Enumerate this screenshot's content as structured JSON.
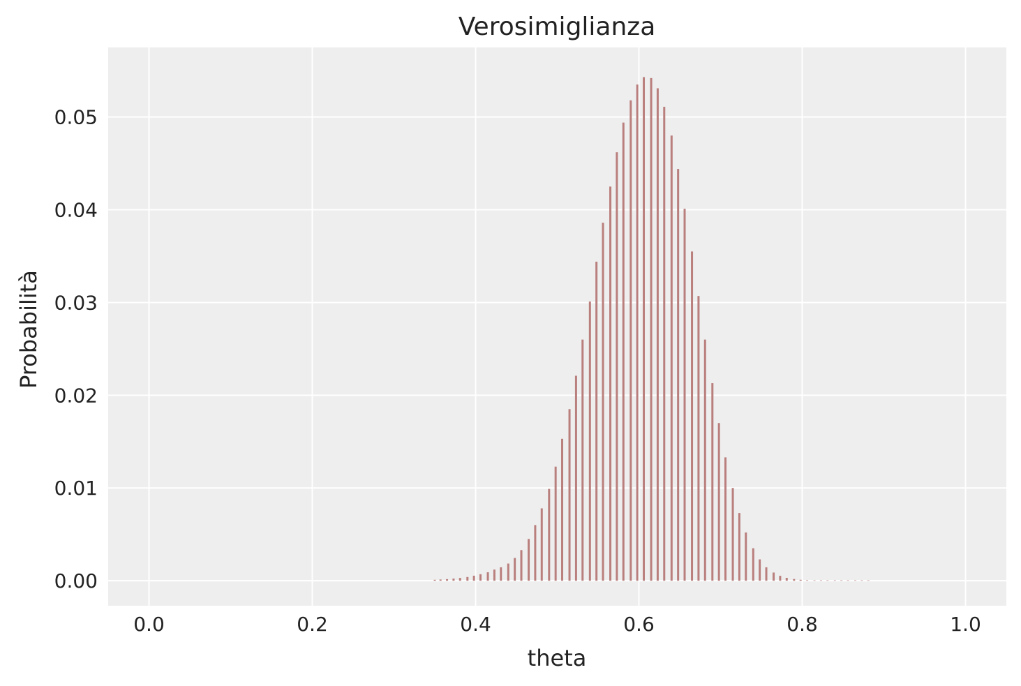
{
  "chart_data": {
    "type": "bar",
    "title": "Verosimiglianza",
    "xlabel": "theta",
    "ylabel": "Probabilità",
    "xlim": [
      -0.05,
      1.05
    ],
    "ylim": [
      -0.0027,
      0.0575
    ],
    "xticks": [
      "0.0",
      "0.2",
      "0.4",
      "0.6",
      "0.8",
      "1.0"
    ],
    "yticks": [
      "0.00",
      "0.01",
      "0.02",
      "0.03",
      "0.04",
      "0.05"
    ],
    "grid": true,
    "background": "#eeeeee",
    "grid_color": "#ffffff",
    "bar_color": "#b97f7d",
    "x": [
      0.35,
      0.357,
      0.365,
      0.373,
      0.381,
      0.39,
      0.398,
      0.406,
      0.415,
      0.423,
      0.431,
      0.44,
      0.448,
      0.456,
      0.465,
      0.473,
      0.481,
      0.49,
      0.498,
      0.506,
      0.515,
      0.523,
      0.531,
      0.54,
      0.548,
      0.556,
      0.565,
      0.573,
      0.581,
      0.59,
      0.598,
      0.606,
      0.615,
      0.623,
      0.631,
      0.64,
      0.648,
      0.656,
      0.665,
      0.673,
      0.681,
      0.69,
      0.698,
      0.706,
      0.715,
      0.723,
      0.731,
      0.74,
      0.748,
      0.756,
      0.765,
      0.773,
      0.781,
      0.79,
      0.798,
      0.806,
      0.815,
      0.823,
      0.831,
      0.84,
      0.848,
      0.856,
      0.865,
      0.873,
      0.881
    ],
    "values": [
      0.0001,
      0.00013,
      0.00017,
      0.00023,
      0.0003,
      0.0004,
      0.00054,
      0.0007,
      0.00091,
      0.0012,
      0.00145,
      0.00185,
      0.00245,
      0.0033,
      0.0045,
      0.006,
      0.0078,
      0.0099,
      0.0123,
      0.0153,
      0.0185,
      0.0221,
      0.026,
      0.0301,
      0.0344,
      0.0386,
      0.0425,
      0.0462,
      0.0494,
      0.0518,
      0.0535,
      0.0543,
      0.0542,
      0.0531,
      0.0511,
      0.048,
      0.0444,
      0.0401,
      0.0355,
      0.0307,
      0.026,
      0.0213,
      0.017,
      0.0133,
      0.01,
      0.0073,
      0.0052,
      0.0035,
      0.0023,
      0.00145,
      0.00088,
      0.00053,
      0.00031,
      0.00018,
      0.0001,
      5e-05,
      3e-05,
      2e-05,
      1e-05,
      1e-05,
      0.0,
      0.0,
      0.0,
      0.0,
      0.0
    ]
  }
}
